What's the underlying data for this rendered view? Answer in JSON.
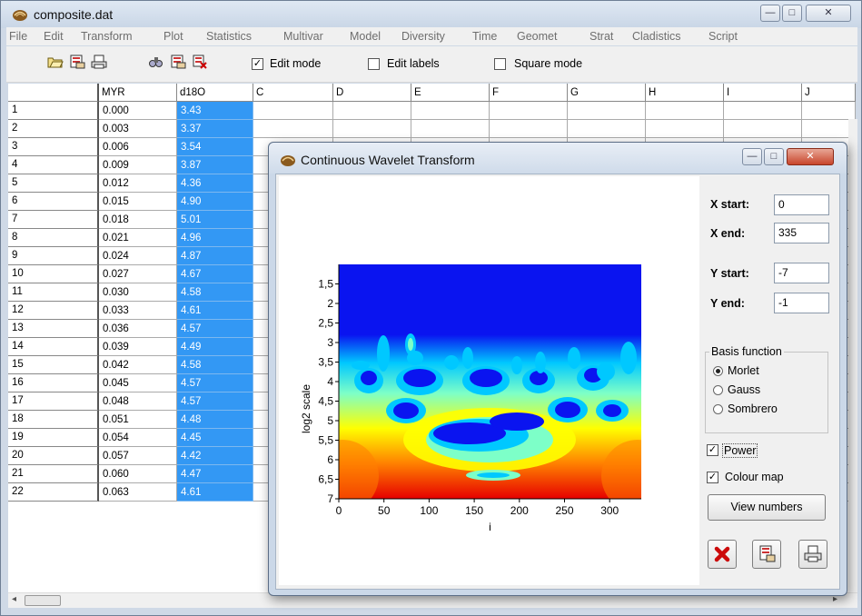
{
  "main_window": {
    "title": "composite.dat",
    "controls": {
      "minimize": "—",
      "maximize": "□",
      "close": "✕"
    }
  },
  "menu": [
    "File",
    "Edit",
    "Transform",
    "Plot",
    "Statistics",
    "Multivar",
    "Model",
    "Diversity",
    "Time",
    "Geomet",
    "Strat",
    "Cladistics",
    "Script"
  ],
  "toolbar": {
    "icons": [
      "open-icon",
      "save-icon",
      "print-icon",
      "find-icon",
      "export-icon",
      "copy-icon"
    ],
    "edit_mode": {
      "label": "Edit mode",
      "checked": true
    },
    "edit_labels": {
      "label": "Edit labels",
      "checked": false
    },
    "square_mode": {
      "label": "Square mode",
      "checked": false
    }
  },
  "grid": {
    "columns": [
      "MYR",
      "d18O",
      "C",
      "D",
      "E",
      "F",
      "G",
      "H",
      "I",
      "J"
    ],
    "rows": [
      {
        "n": "1",
        "myr": "0.000",
        "d18o": "3.43"
      },
      {
        "n": "2",
        "myr": "0.003",
        "d18o": "3.37"
      },
      {
        "n": "3",
        "myr": "0.006",
        "d18o": "3.54"
      },
      {
        "n": "4",
        "myr": "0.009",
        "d18o": "3.87"
      },
      {
        "n": "5",
        "myr": "0.012",
        "d18o": "4.36"
      },
      {
        "n": "6",
        "myr": "0.015",
        "d18o": "4.90"
      },
      {
        "n": "7",
        "myr": "0.018",
        "d18o": "5.01"
      },
      {
        "n": "8",
        "myr": "0.021",
        "d18o": "4.96"
      },
      {
        "n": "9",
        "myr": "0.024",
        "d18o": "4.87"
      },
      {
        "n": "10",
        "myr": "0.027",
        "d18o": "4.67"
      },
      {
        "n": "11",
        "myr": "0.030",
        "d18o": "4.58"
      },
      {
        "n": "12",
        "myr": "0.033",
        "d18o": "4.61"
      },
      {
        "n": "13",
        "myr": "0.036",
        "d18o": "4.57"
      },
      {
        "n": "14",
        "myr": "0.039",
        "d18o": "4.49"
      },
      {
        "n": "15",
        "myr": "0.042",
        "d18o": "4.58"
      },
      {
        "n": "16",
        "myr": "0.045",
        "d18o": "4.57"
      },
      {
        "n": "17",
        "myr": "0.048",
        "d18o": "4.57"
      },
      {
        "n": "18",
        "myr": "0.051",
        "d18o": "4.48"
      },
      {
        "n": "19",
        "myr": "0.054",
        "d18o": "4.45"
      },
      {
        "n": "20",
        "myr": "0.057",
        "d18o": "4.42"
      },
      {
        "n": "21",
        "myr": "0.060",
        "d18o": "4.47"
      },
      {
        "n": "22",
        "myr": "0.063",
        "d18o": "4.61"
      }
    ]
  },
  "dialog": {
    "title": "Continuous Wavelet Transform",
    "fields": {
      "x_start": {
        "label": "X start:",
        "value": "0"
      },
      "x_end": {
        "label": "X end:",
        "value": "335"
      },
      "y_start": {
        "label": "Y start:",
        "value": "-7"
      },
      "y_end": {
        "label": "Y end:",
        "value": "-1"
      }
    },
    "basis": {
      "title": "Basis function",
      "options": [
        "Morlet",
        "Gauss",
        "Sombrero"
      ],
      "selected": "Morlet"
    },
    "power": {
      "label": "Power",
      "checked": true
    },
    "colour_map": {
      "label": "Colour map",
      "checked": true
    },
    "view_numbers": "View numbers",
    "bottom_icons": [
      "close-icon",
      "export-icon",
      "print-icon"
    ]
  },
  "chart_data": {
    "type": "heatmap",
    "title": "",
    "xlabel": "i",
    "ylabel": "log2 scale",
    "xlim": [
      0,
      335
    ],
    "ylim": [
      1,
      7
    ],
    "x_ticks": [
      "0",
      "50",
      "100",
      "150",
      "200",
      "250",
      "300"
    ],
    "y_ticks": [
      "1,5",
      "2",
      "2,5",
      "3",
      "3,5",
      "4",
      "4,5",
      "5",
      "5,5",
      "6",
      "6,5",
      "7"
    ],
    "colormap": [
      "#0a14f0",
      "#00c8ff",
      "#7dffc8",
      "#ffff00",
      "#ff8000",
      "#e60000"
    ]
  }
}
